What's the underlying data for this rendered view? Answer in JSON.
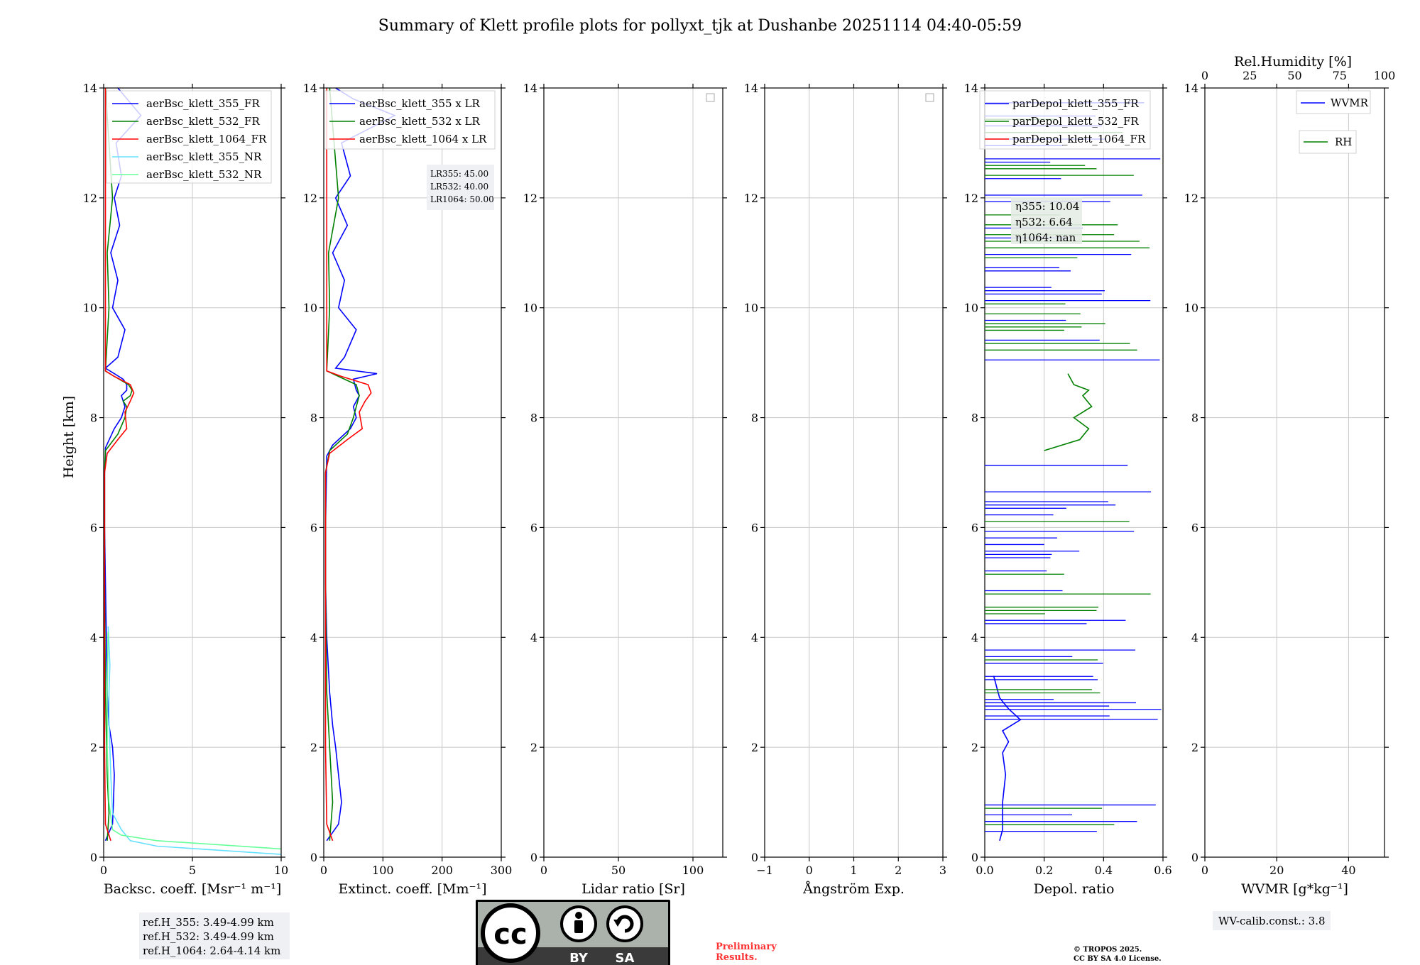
{
  "title": "Summary of Klett profile plots for pollyxt_tjk at Dushanbe 20251114 04:40-05:59",
  "colors": {
    "blue": "#0000ff",
    "green": "#008000",
    "red": "#ff0000",
    "cyan": "#66e0ff",
    "lightgreen": "#66ff99",
    "grid": "#c8c8c8"
  },
  "ylabel": "Height [km]",
  "ylim": [
    0,
    14
  ],
  "yticks": [
    "0",
    "2",
    "4",
    "6",
    "8",
    "10",
    "12",
    "14"
  ],
  "chart_data": [
    {
      "type": "line",
      "xlabel": "Backsc. coeff. [Msr⁻¹ m⁻¹]",
      "xlim": [
        0,
        10
      ],
      "xticks": [
        "0",
        "5",
        "10"
      ],
      "legend": [
        "aerBsc_klett_355_FR",
        "aerBsc_klett_532_FR",
        "aerBsc_klett_1064_FR",
        "aerBsc_klett_355_NR",
        "aerBsc_klett_532_NR"
      ],
      "series": [
        {
          "name": "aerBsc_klett_355_FR",
          "color": "blue",
          "x": [
            0.1,
            0.5,
            0.55,
            0.6,
            0.5,
            0.3,
            0.2,
            0.15,
            0.1,
            0.05,
            0.05,
            0.1,
            0.1,
            0.6,
            1.0,
            1.2,
            1.0,
            1.3,
            1.3,
            1.1,
            0.6,
            0.1,
            0.8,
            1.2,
            0.5,
            0.8,
            0.4,
            0.9,
            0.6,
            1.0,
            0.7,
            2.1,
            0.8
          ],
          "y": [
            0.3,
            0.6,
            1.0,
            1.5,
            2.0,
            2.4,
            3.0,
            4.0,
            5.0,
            6.0,
            7.0,
            7.3,
            7.45,
            7.8,
            8.0,
            8.2,
            8.4,
            8.5,
            8.6,
            8.7,
            8.8,
            8.9,
            9.1,
            9.6,
            10.0,
            10.5,
            11.0,
            11.5,
            12.0,
            12.4,
            13.0,
            13.5,
            14.0
          ]
        },
        {
          "name": "aerBsc_klett_532_FR",
          "color": "green",
          "x": [
            0.2,
            0.3,
            0.2,
            0.1,
            0.05,
            0.05,
            0.1,
            0.8,
            1.2,
            1.3,
            1.1,
            1.5,
            1.6,
            1.4,
            0.6,
            0.1,
            0.3,
            0.2,
            0.5,
            0.1
          ],
          "y": [
            0.3,
            0.8,
            1.5,
            3.0,
            5.0,
            7.0,
            7.4,
            7.7,
            8.0,
            8.2,
            8.3,
            8.4,
            8.5,
            8.6,
            8.75,
            8.85,
            10.0,
            11.0,
            12.0,
            14.0
          ]
        },
        {
          "name": "aerBsc_klett_1064_FR",
          "color": "red",
          "x": [
            0.4,
            0.1,
            0.05,
            0.05,
            0.05,
            0.2,
            0.8,
            1.3,
            1.2,
            1.5,
            1.7,
            1.5,
            0.6,
            0.1,
            0.1,
            0.1
          ],
          "y": [
            0.3,
            0.6,
            2.0,
            5.0,
            7.0,
            7.35,
            7.6,
            7.8,
            8.1,
            8.3,
            8.45,
            8.6,
            8.75,
            8.85,
            11.0,
            14.0
          ]
        },
        {
          "name": "aerBsc_klett_355_NR",
          "color": "cyan",
          "x": [
            10,
            3,
            1.5,
            1.0,
            0.5,
            0.4,
            0.3,
            0.3,
            0.35,
            0.25
          ],
          "y": [
            0.05,
            0.2,
            0.3,
            0.5,
            0.8,
            1.5,
            2.5,
            3.0,
            3.5,
            4.2
          ]
        },
        {
          "name": "aerBsc_klett_532_NR",
          "color": "lightgreen",
          "x": [
            10,
            3,
            1.0,
            0.5,
            0.3,
            0.2,
            0.2,
            0.25
          ],
          "y": [
            0.15,
            0.3,
            0.4,
            0.5,
            1.0,
            2.0,
            3.0,
            4.1
          ]
        }
      ]
    },
    {
      "type": "line",
      "xlabel": "Extinct. coeff. [Mm⁻¹]",
      "xlim": [
        0,
        300
      ],
      "xticks": [
        "0",
        "100",
        "200",
        "300"
      ],
      "legend": [
        "aerBsc_klett_355 x LR",
        "aerBsc_klett_532 x LR",
        "aerBsc_klett_1064 x LR"
      ],
      "lr_text": [
        "LR355: 45.00",
        "LR532: 40.00",
        "LR1064: 50.00"
      ],
      "series": [
        {
          "name": "aerBsc_klett_355 x LR",
          "color": "blue",
          "x": [
            5,
            25,
            30,
            25,
            20,
            15,
            10,
            5,
            3,
            3,
            5,
            15,
            45,
            55,
            50,
            60,
            55,
            50,
            90,
            20,
            35,
            55,
            25,
            35,
            15,
            40,
            20,
            45,
            30,
            120,
            50,
            20
          ],
          "y": [
            0.3,
            0.6,
            1.0,
            1.5,
            2.0,
            2.4,
            3.0,
            4.0,
            5.0,
            6.0,
            7.3,
            7.5,
            7.8,
            8.0,
            8.2,
            8.4,
            8.5,
            8.7,
            8.8,
            8.9,
            9.1,
            9.6,
            10.0,
            10.5,
            11.0,
            11.5,
            12.0,
            12.4,
            13.0,
            13.5,
            13.8,
            14.0
          ]
        },
        {
          "name": "aerBsc_klett_532 x LR",
          "color": "green",
          "x": [
            10,
            15,
            10,
            5,
            3,
            3,
            10,
            40,
            50,
            55,
            60,
            55,
            25,
            5,
            10,
            8,
            25,
            10
          ],
          "y": [
            0.3,
            1.0,
            2.0,
            3.0,
            5.0,
            7.0,
            7.4,
            7.7,
            8.0,
            8.2,
            8.4,
            8.6,
            8.75,
            8.85,
            10.0,
            11.0,
            12.0,
            14.0
          ]
        },
        {
          "name": "aerBsc_klett_1064 x LR",
          "color": "red",
          "x": [
            15,
            5,
            3,
            3,
            3,
            10,
            40,
            65,
            60,
            70,
            80,
            75,
            30,
            5,
            5,
            5
          ],
          "y": [
            0.3,
            0.6,
            2.0,
            5.0,
            7.0,
            7.35,
            7.6,
            7.8,
            8.1,
            8.3,
            8.45,
            8.6,
            8.75,
            8.85,
            11.0,
            14.0
          ]
        }
      ]
    },
    {
      "type": "line",
      "xlabel": "Lidar ratio [Sr]",
      "xlim": [
        0,
        120
      ],
      "xticks": [
        "0",
        "50",
        "100"
      ],
      "series": []
    },
    {
      "type": "line",
      "xlabel": "Ångström Exp.",
      "xlim": [
        -1,
        3
      ],
      "xticks": [
        "−1",
        "0",
        "1",
        "2",
        "3"
      ],
      "series": []
    },
    {
      "type": "line",
      "xlabel": "Depol. ratio",
      "xlim": [
        0,
        0.6
      ],
      "xticks": [
        "0.0",
        "0.2",
        "0.4",
        "0.6"
      ],
      "legend": [
        "parDepol_klett_355_FR",
        "parDepol_klett_532_FR",
        "parDepol_klett_1064_FR"
      ],
      "eta_text": [
        "η355: 10.04",
        "η532: 6.64",
        "η1064: nan"
      ],
      "series": [
        {
          "name": "parDepol_klett_355_FR",
          "color": "blue",
          "x": [
            0.05,
            0.06,
            0.06,
            0.07,
            0.06,
            0.08,
            0.06,
            0.12,
            0.08,
            0.05,
            0.04,
            0.03
          ],
          "y": [
            0.3,
            0.5,
            1.0,
            1.5,
            1.9,
            2.1,
            2.3,
            2.5,
            2.7,
            2.9,
            3.1,
            3.3
          ]
        },
        {
          "name": "parDepol_klett_532_FR",
          "color": "green",
          "x": [
            0.2,
            0.32,
            0.35,
            0.3,
            0.36,
            0.33,
            0.35,
            0.3,
            0.28
          ],
          "y": [
            7.4,
            7.6,
            7.8,
            8.0,
            8.2,
            8.4,
            8.5,
            8.6,
            8.8
          ]
        }
      ]
    },
    {
      "type": "line",
      "xlabel": "WVMR [g*kg⁻¹]",
      "xlim": [
        0,
        50
      ],
      "xticks": [
        "0",
        "20",
        "40"
      ],
      "top_label": "Rel.Humidity [%]",
      "top_ticks": [
        "0",
        "25",
        "50",
        "75",
        "100"
      ],
      "legend": [
        "WVMR",
        "RH"
      ],
      "calib": "WV-calib.const.: 3.8",
      "series": []
    }
  ],
  "ref_heights": [
    "ref.H_355: 3.49-4.99 km",
    "ref.H_532: 3.49-4.99 km",
    "ref.H_1064: 2.64-4.14 km"
  ],
  "license_badge": {
    "by": "BY",
    "sa": "SA"
  },
  "preliminary": [
    "Preliminary",
    "Results."
  ],
  "copyright": [
    "© TROPOS 2025.",
    "CC BY SA 4.0 License."
  ]
}
